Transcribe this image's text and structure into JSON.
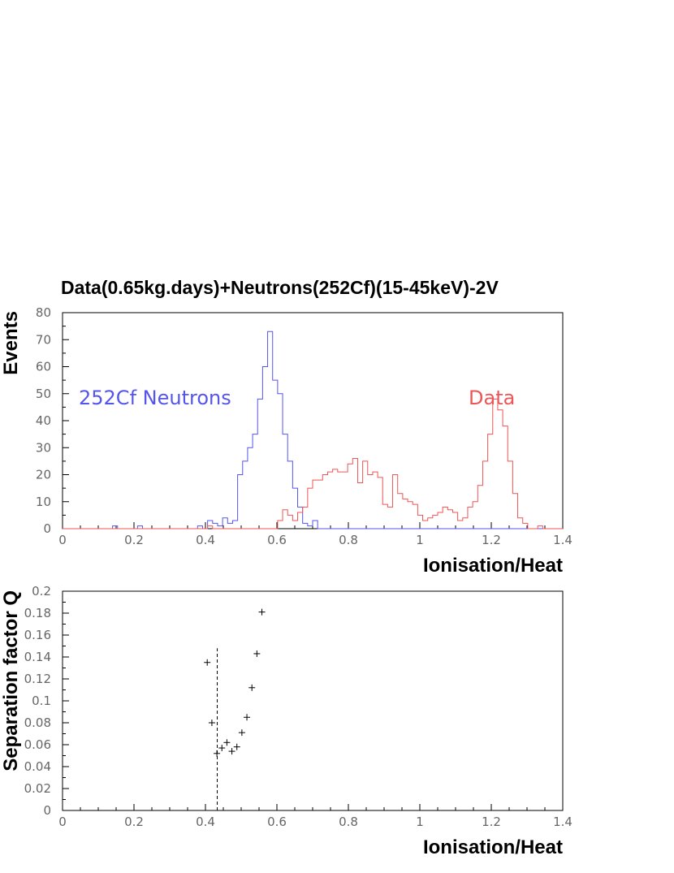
{
  "title": "Data(0.65kg.days)+Neutrons(252Cf)(15-45keV)-2V",
  "colors": {
    "neutrons": "#5555ee",
    "data": "#ee5555",
    "axis": "#000000"
  },
  "chart_data": [
    {
      "type": "step-histogram",
      "xlabel": "Ionisation/Heat",
      "ylabel": "Events",
      "xlim": [
        0,
        1.4
      ],
      "ylim": [
        0,
        80
      ],
      "x_ticks": [
        "0",
        "0.2",
        "0.4",
        "0.6",
        "0.8",
        "1",
        "1.2",
        "1.4"
      ],
      "y_ticks": [
        "0",
        "10",
        "20",
        "30",
        "40",
        "50",
        "60",
        "70",
        "80"
      ],
      "bin_width": 0.014,
      "x_start": 0,
      "series": [
        {
          "name": "252Cf Neutrons",
          "color": "#5555ee",
          "values": [
            0,
            0,
            0,
            0,
            0,
            0,
            0,
            0,
            0,
            0,
            1,
            0,
            0,
            0,
            0,
            1,
            0,
            0,
            0,
            0,
            0,
            0,
            0,
            0,
            0,
            0,
            0,
            1,
            0,
            3,
            2,
            1,
            4,
            2,
            3,
            20,
            25,
            30,
            35,
            48,
            60,
            73,
            55,
            50,
            35,
            25,
            15,
            8,
            2,
            1,
            3,
            0,
            0,
            0,
            0,
            0,
            0,
            0,
            0,
            0,
            0,
            0,
            0,
            0,
            0,
            0,
            0,
            0,
            0,
            0,
            0,
            0,
            0,
            0,
            0,
            0,
            0,
            0,
            0,
            0,
            0,
            0,
            0,
            0,
            0,
            0,
            0,
            0,
            0,
            0,
            0,
            0,
            0,
            0,
            0,
            0,
            0,
            0,
            0,
            0
          ]
        },
        {
          "name": "Data",
          "color": "#ee5555",
          "values": [
            0,
            0,
            0,
            0,
            0,
            0,
            0,
            0,
            0,
            0,
            0,
            0,
            0,
            0,
            0,
            0,
            0,
            0,
            0,
            0,
            0,
            0,
            0,
            0,
            0,
            0,
            0,
            0,
            0,
            1,
            0,
            0,
            0,
            0,
            0,
            0,
            0,
            0,
            0,
            0,
            0,
            0,
            0,
            3,
            7,
            5,
            3,
            6,
            8,
            15,
            18,
            18,
            20,
            21,
            22,
            21,
            21,
            24,
            26,
            17,
            25,
            20,
            21,
            19,
            9,
            8,
            20,
            13,
            11,
            10,
            9,
            5,
            3,
            4,
            5,
            6,
            8,
            7,
            6,
            3,
            4,
            8,
            10,
            16,
            25,
            35,
            48,
            44,
            38,
            25,
            13,
            4,
            2,
            0,
            0,
            1,
            0,
            0,
            0,
            0
          ]
        }
      ],
      "annotations": [
        {
          "text": "252Cf Neutrons",
          "color": "#5555ee"
        },
        {
          "text": "Data",
          "color": "#ee5555"
        }
      ]
    },
    {
      "type": "scatter",
      "xlabel": "Ionisation/Heat",
      "ylabel": "Separation factor Q",
      "xlim": [
        0,
        1.4
      ],
      "ylim": [
        0,
        0.2
      ],
      "x_ticks": [
        "0",
        "0.2",
        "0.4",
        "0.6",
        "0.8",
        "1",
        "1.2",
        "1.4"
      ],
      "y_ticks": [
        "0",
        "0.02",
        "0.04",
        "0.06",
        "0.08",
        "0.1",
        "0.12",
        "0.14",
        "0.16",
        "0.18",
        "0.2"
      ],
      "marker": "+",
      "points": [
        [
          0.405,
          0.135
        ],
        [
          0.418,
          0.08
        ],
        [
          0.432,
          0.052
        ],
        [
          0.446,
          0.057
        ],
        [
          0.46,
          0.062
        ],
        [
          0.474,
          0.054
        ],
        [
          0.488,
          0.058
        ],
        [
          0.502,
          0.071
        ],
        [
          0.516,
          0.085
        ],
        [
          0.53,
          0.112
        ],
        [
          0.544,
          0.143
        ],
        [
          0.558,
          0.181
        ]
      ],
      "vline": {
        "x": 0.433,
        "y_to": 0.148,
        "style": "dashed"
      }
    }
  ]
}
